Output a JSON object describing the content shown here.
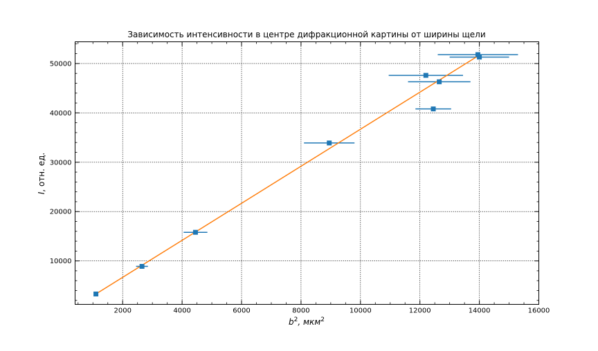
{
  "chart_data": {
    "type": "scatter",
    "title": "Зависимость интенсивности в центре дифракционной картины от ширины щели",
    "xlabel_base": "b",
    "xlabel_sup": "2",
    "xlabel_rest": ", мкм",
    "xlabel_unit_sup": "2",
    "ylabel_italic": "I",
    "ylabel_rest": ", отн. ед.",
    "xlim": [
      400,
      16000
    ],
    "ylim": [
      1200,
      54400
    ],
    "x_ticks": [
      2000,
      4000,
      6000,
      8000,
      10000,
      12000,
      14000,
      16000
    ],
    "y_ticks": [
      10000,
      20000,
      30000,
      40000,
      50000
    ],
    "x_tick_labels": [
      "2000",
      "4000",
      "6000",
      "8000",
      "10000",
      "12000",
      "14000",
      "16000"
    ],
    "y_tick_labels": [
      "10000",
      "20000",
      "30000",
      "40000",
      "50000"
    ],
    "grid": true,
    "colors": {
      "points": "#1f77b4",
      "fit": "#ff7f0e"
    },
    "series": [
      {
        "kind": "points_with_xerr",
        "points": [
          {
            "x": 1100,
            "y": 3300,
            "xerr": 0
          },
          {
            "x": 2650,
            "y": 8900,
            "xerr": 200
          },
          {
            "x": 4450,
            "y": 15800,
            "xerr": 400
          },
          {
            "x": 8950,
            "y": 33900,
            "xerr": 850
          },
          {
            "x": 12200,
            "y": 47600,
            "xerr": 1250
          },
          {
            "x": 12450,
            "y": 40800,
            "xerr": 600
          },
          {
            "x": 12650,
            "y": 46300,
            "xerr": 1050
          },
          {
            "x": 13950,
            "y": 51800,
            "xerr": 1350
          },
          {
            "x": 14000,
            "y": 51300,
            "xerr": 1000
          }
        ]
      },
      {
        "kind": "fit_line",
        "x": [
          1100,
          14000
        ],
        "y": [
          3300,
          51700
        ]
      }
    ]
  }
}
